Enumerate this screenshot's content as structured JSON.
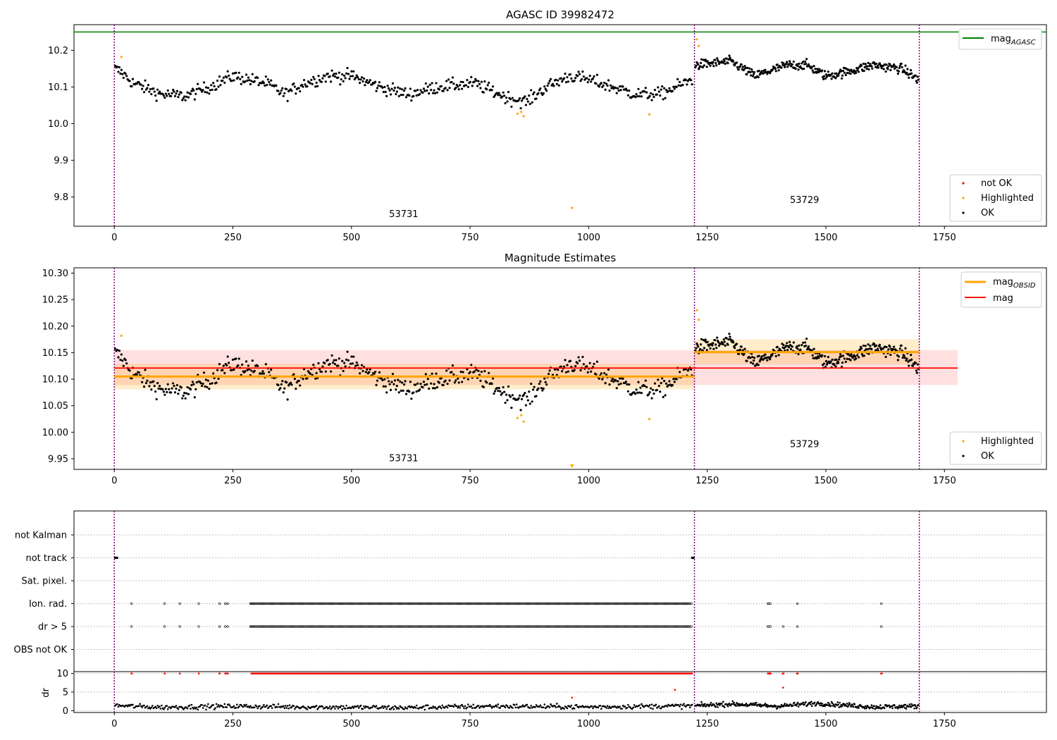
{
  "chart_data": [
    {
      "type": "scatter",
      "title": "AGASC ID 39982472",
      "xlim": [
        -85,
        1965
      ],
      "ylim": [
        9.72,
        10.27
      ],
      "xticks": [
        0,
        250,
        500,
        750,
        1000,
        1250,
        1500,
        1750
      ],
      "yticks": [
        9.8,
        9.9,
        10.0,
        10.1,
        10.2
      ],
      "ytick_labels": [
        "9.8",
        "9.9",
        "10.0",
        "10.1",
        "10.2"
      ],
      "obs_boundaries": [
        0,
        1223,
        1697
      ],
      "obs_labels": [
        {
          "text": "53731",
          "x": 610,
          "y": 9.745
        },
        {
          "text": "53729",
          "x": 1455,
          "y": 9.783
        }
      ],
      "ref_lines": [
        {
          "name": "mag_AGASC",
          "y": 10.25,
          "color": "#008000"
        }
      ],
      "legend_lines": [
        {
          "name": "mag",
          "sub": "AGASC",
          "color": "#008000"
        }
      ],
      "legend_points": [
        {
          "name": "not OK",
          "color": "#ff0000"
        },
        {
          "name": "Highlighted",
          "color": "#ffa500"
        },
        {
          "name": "OK",
          "color": "#000000"
        }
      ],
      "highlighted_points": [
        [
          15,
          10.182
        ],
        [
          850,
          10.027
        ],
        [
          858,
          10.032
        ],
        [
          863,
          10.02
        ],
        [
          1128,
          10.025
        ],
        [
          965,
          9.77
        ],
        [
          1228,
          10.23
        ],
        [
          1232,
          10.212
        ]
      ],
      "segments": [
        {
          "label": "53731",
          "x_start": 2,
          "x_end": 1218,
          "count": 560,
          "center": 10.105,
          "spread": 0.023,
          "wave": [
            [
              0,
              10.15
            ],
            [
              15,
              10.14
            ],
            [
              40,
              10.11
            ],
            [
              100,
              10.08
            ],
            [
              150,
              10.075
            ],
            [
              200,
              10.1
            ],
            [
              250,
              10.13
            ],
            [
              320,
              10.11
            ],
            [
              360,
              10.08
            ],
            [
              400,
              10.11
            ],
            [
              450,
              10.13
            ],
            [
              500,
              10.13
            ],
            [
              560,
              10.1
            ],
            [
              620,
              10.08
            ],
            [
              680,
              10.1
            ],
            [
              760,
              10.11
            ],
            [
              830,
              10.07
            ],
            [
              870,
              10.06
            ],
            [
              910,
              10.1
            ],
            [
              960,
              10.13
            ],
            [
              1000,
              10.12
            ],
            [
              1050,
              10.1
            ],
            [
              1100,
              10.08
            ],
            [
              1150,
              10.08
            ],
            [
              1218,
              10.12
            ]
          ]
        },
        {
          "label": "53729",
          "x_start": 1225,
          "x_end": 1695,
          "count": 330,
          "center": 10.152,
          "spread": 0.017,
          "wave": [
            [
              1225,
              10.16
            ],
            [
              1300,
              10.17
            ],
            [
              1350,
              10.13
            ],
            [
              1420,
              10.16
            ],
            [
              1460,
              10.16
            ],
            [
              1500,
              10.13
            ],
            [
              1540,
              10.14
            ],
            [
              1600,
              10.16
            ],
            [
              1660,
              10.15
            ],
            [
              1695,
              10.12
            ]
          ]
        }
      ]
    },
    {
      "type": "scatter",
      "title": "Magnitude Estimates",
      "xlim": [
        -85,
        1965
      ],
      "ylim": [
        9.93,
        10.31
      ],
      "xticks": [
        0,
        250,
        500,
        750,
        1000,
        1250,
        1500,
        1750
      ],
      "yticks": [
        9.95,
        10.0,
        10.05,
        10.1,
        10.15,
        10.2,
        10.25,
        10.3
      ],
      "ytick_labels": [
        "9.95",
        "10.00",
        "10.05",
        "10.10",
        "10.15",
        "10.20",
        "10.25",
        "10.30"
      ],
      "obs_boundaries": [
        0,
        1223,
        1697
      ],
      "obs_labels": [
        {
          "text": "53731",
          "x": 610,
          "y": 9.945
        },
        {
          "text": "53729",
          "x": 1455,
          "y": 9.972
        }
      ],
      "mag": {
        "value": 10.121,
        "band": [
          10.089,
          10.155
        ],
        "x_start": 0,
        "x_end": 1778,
        "color": "#ff0000"
      },
      "mag_obsid": [
        {
          "value": 10.105,
          "band": [
            10.081,
            10.129
          ],
          "x_start": 0,
          "x_end": 1223
        },
        {
          "value": 10.151,
          "band": [
            10.128,
            10.175
          ],
          "x_start": 1223,
          "x_end": 1697
        }
      ],
      "off_scale_marker": {
        "x": 965,
        "y": 9.934,
        "color": "#ffa500"
      },
      "legend_lines": [
        {
          "name": "mag",
          "sub": "OBSID",
          "color": "#ffa500"
        },
        {
          "name": "mag",
          "sub": "",
          "color": "#ff0000"
        }
      ],
      "legend_points": [
        {
          "name": "Highlighted",
          "color": "#ffa500"
        },
        {
          "name": "OK",
          "color": "#000000"
        }
      ]
    },
    {
      "type": "scatter",
      "title": "",
      "xlim": [
        -85,
        1965
      ],
      "xticks": [
        0,
        250,
        500,
        750,
        1000,
        1250,
        1500,
        1750
      ],
      "obs_boundaries": [
        0,
        1223,
        1697
      ],
      "flag_rows": [
        "not Kalman",
        "not track",
        "Sat. pixel.",
        "Ion. rad.",
        "dr > 5",
        "OBS not OK"
      ],
      "flag_events": {
        "not track": {
          "points": [
            2,
            3,
            4,
            5,
            6,
            1218,
            1219,
            1220,
            1221
          ],
          "ranges": []
        },
        "Ion. rad.": {
          "points": [
            36,
            106,
            138,
            178,
            222,
            234,
            239,
            1378,
            1380,
            1383,
            1440,
            1617
          ],
          "ranges": [
            [
              287,
              1218
            ]
          ]
        },
        "dr > 5": {
          "points": [
            36,
            106,
            138,
            178,
            222,
            234,
            239,
            1378,
            1380,
            1383,
            1410,
            1440,
            1617
          ],
          "ranges": [
            [
              287,
              1218
            ]
          ]
        }
      },
      "dr_panel": {
        "ylabel": "dr",
        "ylim": [
          -0.5,
          10.5
        ],
        "yticks": [
          0,
          5,
          10
        ],
        "clipped_value": 10,
        "outliers": [
          [
            965,
            3.5
          ],
          [
            1182,
            5.6
          ],
          [
            1410,
            6.2
          ],
          [
            238,
            10
          ],
          [
            1440,
            10
          ]
        ]
      }
    }
  ]
}
